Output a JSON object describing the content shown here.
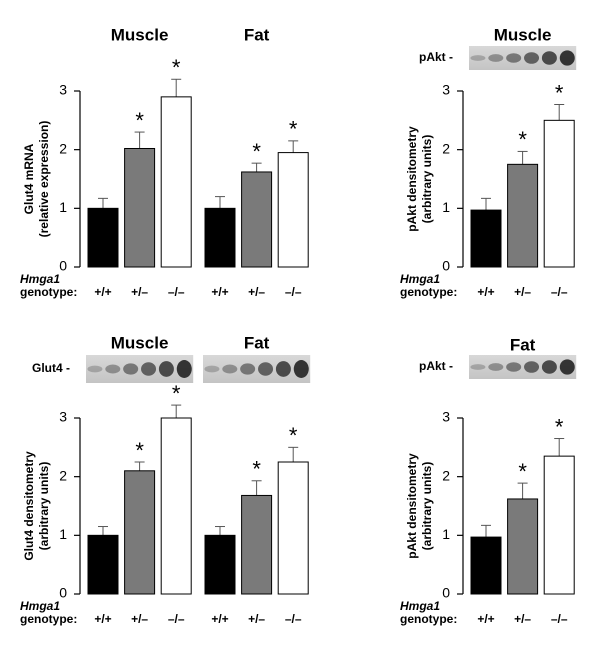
{
  "chart_data": [
    {
      "type": "bar",
      "ylabel": [
        "Glut4 mRNA",
        "(relative expression)"
      ],
      "allele": "Hmga1",
      "genotype_label": "genotype:",
      "categories": [
        "+/+",
        "+/–",
        "–/–"
      ],
      "colors": [
        "#000000",
        "#7a7a7a",
        "#ffffff"
      ],
      "ylim": [
        0,
        3
      ],
      "yticks": [
        0,
        1,
        2,
        3
      ],
      "groups": [
        {
          "title": "Muscle",
          "values": [
            1.0,
            2.02,
            2.9
          ],
          "errors": [
            0.17,
            0.28,
            0.3
          ],
          "significance": [
            null,
            "*",
            "*"
          ]
        },
        {
          "title": "Fat",
          "values": [
            1.0,
            1.62,
            1.95
          ],
          "errors": [
            0.2,
            0.15,
            0.2
          ],
          "significance": [
            null,
            "*",
            "*"
          ]
        }
      ]
    },
    {
      "type": "bar",
      "ylabel": [
        "pAkt densitometry",
        "(arbitrary units)"
      ],
      "allele": "Hmga1",
      "genotype_label": "genotype:",
      "blot_label": "pAkt -",
      "categories": [
        "+/+",
        "+/–",
        "–/–"
      ],
      "colors": [
        "#000000",
        "#7a7a7a",
        "#ffffff"
      ],
      "ylim": [
        0,
        3
      ],
      "yticks": [
        0,
        1,
        2,
        3
      ],
      "groups": [
        {
          "title": "Muscle",
          "values": [
            0.97,
            1.75,
            2.5
          ],
          "errors": [
            0.2,
            0.22,
            0.27
          ],
          "significance": [
            null,
            "*",
            "*"
          ]
        }
      ]
    },
    {
      "type": "bar",
      "ylabel": [
        "Glut4 densitometry",
        "(arbitrary units)"
      ],
      "allele": "Hmga1",
      "genotype_label": "genotype:",
      "blot_label": "Glut4 -",
      "categories": [
        "+/+",
        "+/–",
        "–/–"
      ],
      "colors": [
        "#000000",
        "#7a7a7a",
        "#ffffff"
      ],
      "ylim": [
        0,
        3
      ],
      "yticks": [
        0,
        1,
        2,
        3
      ],
      "groups": [
        {
          "title": "Muscle",
          "values": [
            1.0,
            2.1,
            3.0
          ],
          "errors": [
            0.15,
            0.15,
            0.22
          ],
          "significance": [
            null,
            "*",
            "*"
          ]
        },
        {
          "title": "Fat",
          "values": [
            1.0,
            1.68,
            2.25
          ],
          "errors": [
            0.15,
            0.25,
            0.25
          ],
          "significance": [
            null,
            "*",
            "*"
          ]
        }
      ]
    },
    {
      "type": "bar",
      "ylabel": [
        "pAkt densitometry",
        "(arbitrary units)"
      ],
      "allele": "Hmga1",
      "genotype_label": "genotype:",
      "blot_label": "pAkt -",
      "categories": [
        "+/+",
        "+/–",
        "–/–"
      ],
      "colors": [
        "#000000",
        "#7a7a7a",
        "#ffffff"
      ],
      "ylim": [
        0,
        3
      ],
      "yticks": [
        0,
        1,
        2,
        3
      ],
      "groups": [
        {
          "title": "Fat",
          "values": [
            0.97,
            1.62,
            2.35
          ],
          "errors": [
            0.2,
            0.27,
            0.3
          ],
          "significance": [
            null,
            "*",
            "*"
          ]
        }
      ]
    }
  ]
}
